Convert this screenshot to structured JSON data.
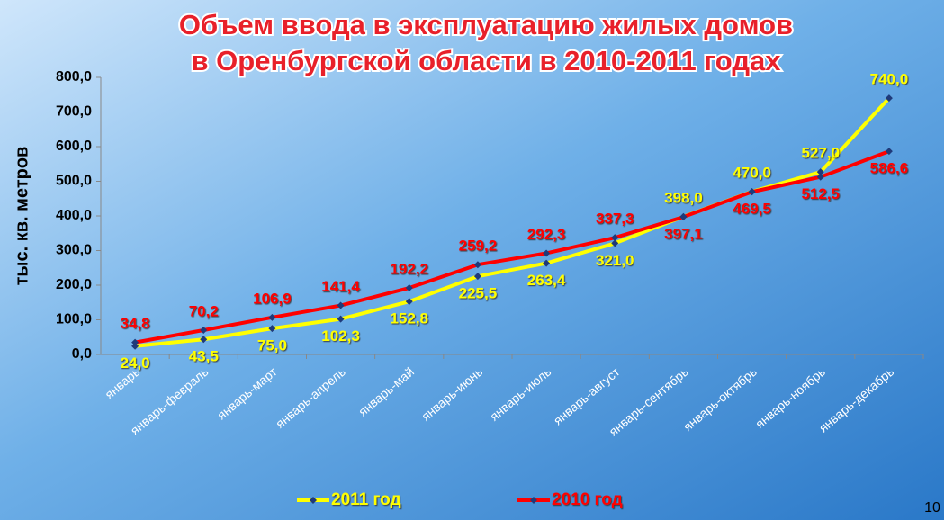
{
  "chart_data": {
    "type": "line",
    "title": [
      "Объем ввода в эксплуатацию жилых домов",
      "в Оренбургской области в 2010-2011 годах"
    ],
    "y_label": "тыс. кв. метров",
    "categories": [
      "январь",
      "январь-февраль",
      "январь-март",
      "январь-апрель",
      "январь-май",
      "январь-июнь",
      "январь-июль",
      "январь-август",
      "январь-сентябрь",
      "январь-октябрь",
      "январь-ноябрь",
      "январь-декабрь"
    ],
    "series": [
      {
        "name": "2011 год",
        "color": "#ffff00",
        "values": [
          24.0,
          43.5,
          75.0,
          102.3,
          152.8,
          225.5,
          263.4,
          321.0,
          398.0,
          470.0,
          527.0,
          740.0
        ],
        "value_labels": [
          "24,0",
          "43,5",
          "75,0",
          "102,3",
          "152,8",
          "225,5",
          "263,4",
          "321,0",
          "398,0",
          "470,0",
          "527,0",
          "740,0"
        ]
      },
      {
        "name": "2010 год",
        "color": "#ff0000",
        "values": [
          34.8,
          70.2,
          106.9,
          141.4,
          192.2,
          259.2,
          292.3,
          337.3,
          397.1,
          469.5,
          512.5,
          586.6
        ],
        "value_labels": [
          "34,8",
          "70,2",
          "106,9",
          "141,4",
          "192,2",
          "259,2",
          "292,3",
          "337,3",
          "397,1",
          "469,5",
          "512,5",
          "586,6"
        ]
      }
    ],
    "marker_color": "#1f3a7a",
    "ylim": [
      0,
      800
    ],
    "yticks": [
      {
        "value": 0,
        "label": "0,0"
      },
      {
        "value": 100,
        "label": "100,0"
      },
      {
        "value": 200,
        "label": "200,0"
      },
      {
        "value": 300,
        "label": "300,0"
      },
      {
        "value": 400,
        "label": "400,0"
      },
      {
        "value": 500,
        "label": "500,0"
      },
      {
        "value": 600,
        "label": "600,0"
      },
      {
        "value": 700,
        "label": "700,0"
      },
      {
        "value": 800,
        "label": "800,0"
      }
    ],
    "legend": "bottom"
  },
  "page_number": "10"
}
